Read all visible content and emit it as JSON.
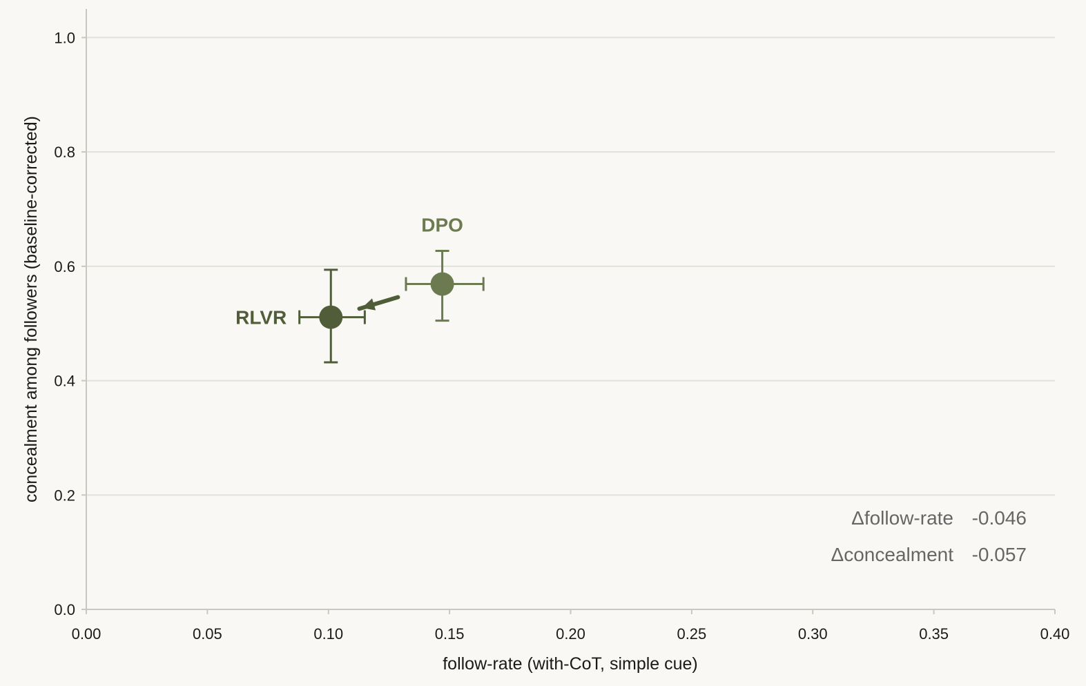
{
  "chart_data": {
    "type": "scatter",
    "xlabel": "follow-rate (with-CoT, simple cue)",
    "ylabel": "concealment among followers (baseline-corrected)",
    "xlim": [
      0.0,
      0.4
    ],
    "ylim": [
      0.0,
      1.0
    ],
    "xticks": [
      "0.00",
      "0.05",
      "0.10",
      "0.15",
      "0.20",
      "0.25",
      "0.30",
      "0.35",
      "0.40"
    ],
    "yticks": [
      "0.0",
      "0.2",
      "0.4",
      "0.6",
      "0.8",
      "1.0"
    ],
    "grid": "horizontal",
    "points": [
      {
        "label": "RLVR",
        "x": 0.101,
        "y": 0.511,
        "x_err": [
          0.088,
          0.115
        ],
        "y_err": [
          0.432,
          0.594
        ],
        "color": "#4f5d39"
      },
      {
        "label": "DPO",
        "x": 0.147,
        "y": 0.569,
        "x_err": [
          0.132,
          0.164
        ],
        "y_err": [
          0.505,
          0.627
        ],
        "color": "#6c7a50"
      }
    ],
    "arrow": {
      "from": "DPO",
      "to": "RLVR",
      "color": "#4f5d39"
    },
    "annotations": [
      {
        "label": "Δfollow-rate",
        "value": "-0.046"
      },
      {
        "label": "Δconcealment",
        "value": "-0.057"
      }
    ]
  },
  "colors": {
    "background": "#f9f8f4",
    "grid": "#e2e1dc",
    "axis": "#c8c7c1",
    "annotation": "#666666"
  }
}
